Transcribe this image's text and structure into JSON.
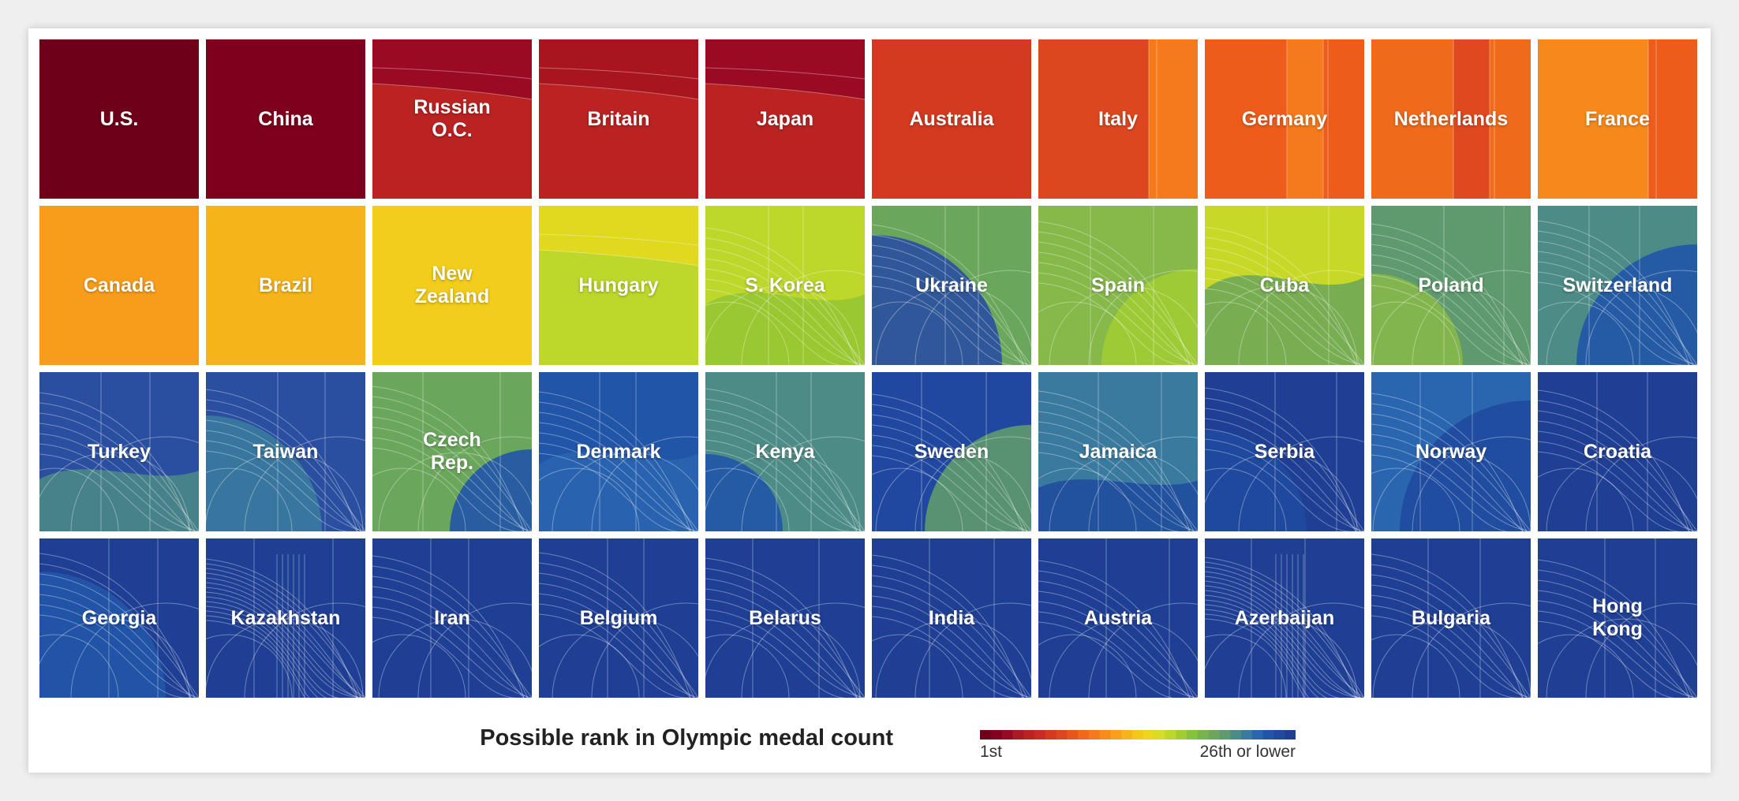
{
  "chart_data": {
    "type": "heatmap",
    "title": "Possible rank in Olympic medal count",
    "rows": 4,
    "cols": 10,
    "legend": {
      "low_label": "1st",
      "high_label": "26th or lower",
      "placement": "bottom-center",
      "colors": [
        "#6e0019",
        "#820020",
        "#960a23",
        "#a81a24",
        "#bb2323",
        "#c92b24",
        "#d33a20",
        "#dd471f",
        "#e8561c",
        "#f0681b",
        "#f47a1c",
        "#f78c1c",
        "#f8a01b",
        "#f6b41b",
        "#f3c81b",
        "#ecd71c",
        "#d8dc24",
        "#bed72b",
        "#a1cd33",
        "#86c23c",
        "#78b44c",
        "#6aa65b",
        "#5e9a6d",
        "#4c8b86",
        "#3a7a9e",
        "#2a66b0",
        "#2155a8",
        "#1f4a9e",
        "#1f3f94"
      ]
    },
    "countries": [
      {
        "label": "U.S.",
        "rank_colors": [
          "#6e0019"
        ],
        "texture": "none"
      },
      {
        "label": "China",
        "rank_colors": [
          "#7e001c"
        ],
        "texture": "none"
      },
      {
        "label": "Russian\nO.C.",
        "rank_colors": [
          "#9a0a22",
          "#bb2323"
        ],
        "texture": "top"
      },
      {
        "label": "Britain",
        "rank_colors": [
          "#a8151f",
          "#bb2323"
        ],
        "texture": "top"
      },
      {
        "label": "Japan",
        "rank_colors": [
          "#9a0a22",
          "#bb2323"
        ],
        "texture": "top"
      },
      {
        "label": "Australia",
        "rank_colors": [
          "#d33a20"
        ],
        "texture": "none"
      },
      {
        "label": "Italy",
        "rank_colors": [
          "#dd471f",
          "#f47a1c"
        ],
        "texture": "right"
      },
      {
        "label": "Germany",
        "rank_colors": [
          "#ee5c1c",
          "#f47a1c"
        ],
        "texture": "vertical"
      },
      {
        "label": "Netherlands",
        "rank_colors": [
          "#f06a1b",
          "#e0481f"
        ],
        "texture": "vertical"
      },
      {
        "label": "France",
        "rank_colors": [
          "#f7891c",
          "#ee5c1c"
        ],
        "texture": "right"
      },
      {
        "label": "Canada",
        "rank_colors": [
          "#f89d1b"
        ],
        "texture": "none"
      },
      {
        "label": "Brazil",
        "rank_colors": [
          "#f6b41b"
        ],
        "texture": "none"
      },
      {
        "label": "New\nZealand",
        "rank_colors": [
          "#f3cd1b"
        ],
        "texture": "none"
      },
      {
        "label": "Hungary",
        "rank_colors": [
          "#e1d820",
          "#bed72b"
        ],
        "texture": "top"
      },
      {
        "label": "S. Korea",
        "rank_colors": [
          "#bed72b",
          "#94c532"
        ],
        "texture": "curves"
      },
      {
        "label": "Ukraine",
        "rank_colors": [
          "#6aa65b",
          "#2a4fa0"
        ],
        "texture": "curves"
      },
      {
        "label": "Spain",
        "rank_colors": [
          "#86b84a",
          "#a1cd33"
        ],
        "texture": "curves"
      },
      {
        "label": "Cuba",
        "rank_colors": [
          "#c8d826",
          "#6aa65b"
        ],
        "texture": "curves"
      },
      {
        "label": "Poland",
        "rank_colors": [
          "#5e9a6d",
          "#86b84a"
        ],
        "texture": "curves"
      },
      {
        "label": "Switzerland",
        "rank_colors": [
          "#4c8b86",
          "#2155a8"
        ],
        "texture": "curves"
      },
      {
        "label": "Turkey",
        "rank_colors": [
          "#2a4fa0",
          "#4c8b86"
        ],
        "texture": "curves"
      },
      {
        "label": "Taiwan",
        "rank_colors": [
          "#2a4fa0",
          "#3a7a9e"
        ],
        "texture": "curves"
      },
      {
        "label": "Czech\nRep.",
        "rank_colors": [
          "#6aa65b",
          "#2155a8"
        ],
        "texture": "curves"
      },
      {
        "label": "Denmark",
        "rank_colors": [
          "#2155a8",
          "#2a66b0"
        ],
        "texture": "curves"
      },
      {
        "label": "Kenya",
        "rank_colors": [
          "#4c8b86",
          "#2155a8"
        ],
        "texture": "curves"
      },
      {
        "label": "Sweden",
        "rank_colors": [
          "#2148a0",
          "#5e9a6d"
        ],
        "texture": "curves"
      },
      {
        "label": "Jamaica",
        "rank_colors": [
          "#3a7a9e",
          "#1f4a9e"
        ],
        "texture": "curves"
      },
      {
        "label": "Serbia",
        "rank_colors": [
          "#1f3f94",
          "#1f4a9e"
        ],
        "texture": "curves"
      },
      {
        "label": "Norway",
        "rank_colors": [
          "#2a66b0",
          "#1f4a9e"
        ],
        "texture": "curves"
      },
      {
        "label": "Croatia",
        "rank_colors": [
          "#1f3f94"
        ],
        "texture": "curves"
      },
      {
        "label": "Georgia",
        "rank_colors": [
          "#1f3f94",
          "#2155a8"
        ],
        "texture": "curves"
      },
      {
        "label": "Kazakhstan",
        "rank_colors": [
          "#1f3f94"
        ],
        "texture": "dense"
      },
      {
        "label": "Iran",
        "rank_colors": [
          "#1f3f94"
        ],
        "texture": "curves"
      },
      {
        "label": "Belgium",
        "rank_colors": [
          "#1f3f94"
        ],
        "texture": "curves"
      },
      {
        "label": "Belarus",
        "rank_colors": [
          "#1f3f94"
        ],
        "texture": "curves"
      },
      {
        "label": "India",
        "rank_colors": [
          "#1f3f94"
        ],
        "texture": "curves"
      },
      {
        "label": "Austria",
        "rank_colors": [
          "#1f3f94"
        ],
        "texture": "curves"
      },
      {
        "label": "Azerbaijan",
        "rank_colors": [
          "#1f3f94"
        ],
        "texture": "dense"
      },
      {
        "label": "Bulgaria",
        "rank_colors": [
          "#1f3f94"
        ],
        "texture": "curves"
      },
      {
        "label": "Hong\nKong",
        "rank_colors": [
          "#1f3f94"
        ],
        "texture": "curves"
      }
    ]
  }
}
